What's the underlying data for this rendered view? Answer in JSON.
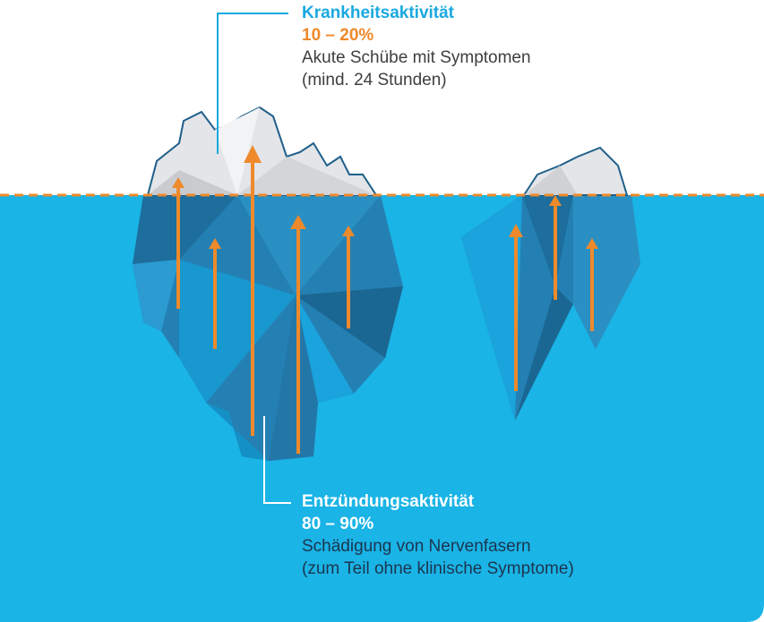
{
  "top_callout": {
    "title": "Krankheitsaktivität",
    "value": "10 – 20%",
    "lines": [
      "Akute Schübe mit Symptomen",
      "(mind. 24 Stunden)"
    ]
  },
  "bottom_callout": {
    "title": "Entzündungsaktivität",
    "value": "80 – 90%",
    "lines": [
      "Schädigung von Nervenfasern",
      "(zum Teil ohne klinische Symptome)"
    ]
  }
}
